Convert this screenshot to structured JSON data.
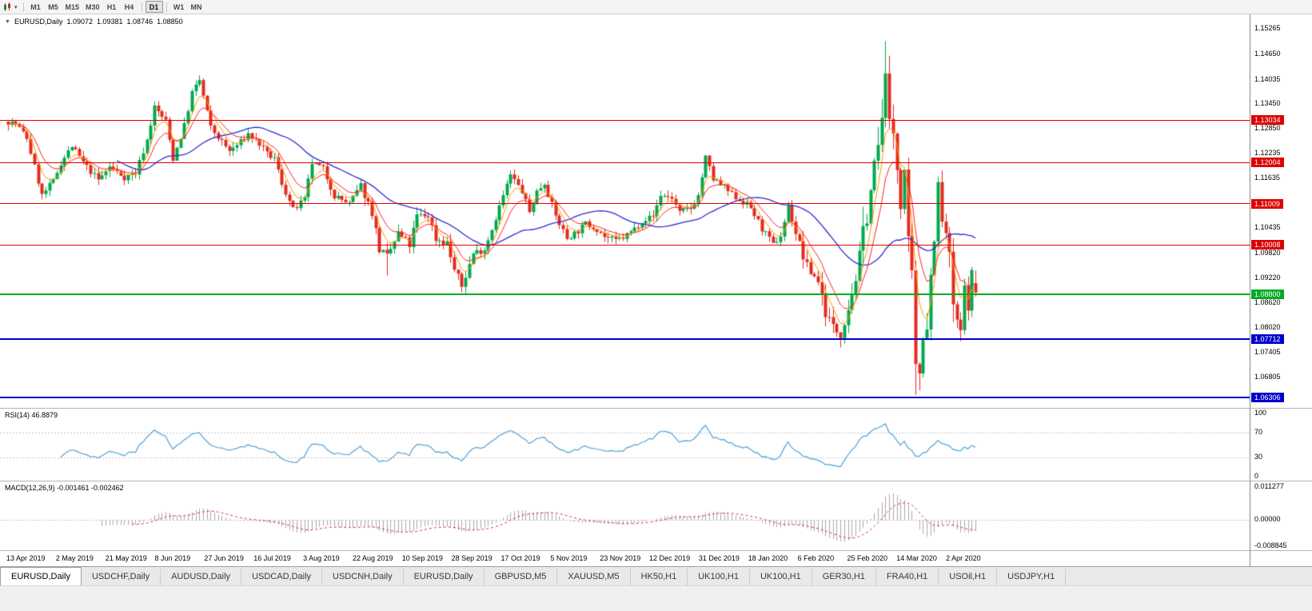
{
  "toolbar": {
    "timeframes": [
      {
        "label": "M1"
      },
      {
        "label": "M5"
      },
      {
        "label": "M15"
      },
      {
        "label": "M30"
      },
      {
        "label": "H1"
      },
      {
        "label": "H4",
        "sep_after": true
      },
      {
        "label": "D1",
        "active": true,
        "sep_after": true
      },
      {
        "label": "W1"
      },
      {
        "label": "MN"
      }
    ]
  },
  "chart": {
    "symbol": "EURUSD,Daily",
    "open": "1.09072",
    "high": "1.09381",
    "low": "1.08746",
    "close": "1.08850"
  },
  "price_axis": {
    "ticks": [
      "1.15265",
      "1.14650",
      "1.14035",
      "1.13450",
      "1.12850",
      "1.12235",
      "1.11635",
      "1.10435",
      "1.09820",
      "1.09220",
      "1.08620",
      "1.08020",
      "1.07405",
      "1.06805"
    ]
  },
  "rsi": {
    "label": "RSI(14) 46.8879",
    "ticks": [
      {
        "label": "100",
        "value": 100
      },
      {
        "label": "70",
        "value": 70
      },
      {
        "label": "30",
        "value": 30
      },
      {
        "label": "0",
        "value": 0
      }
    ],
    "level_lines": [
      70,
      30
    ]
  },
  "macd": {
    "label": "MACD(12,26,9) -0.001461 -0.002462",
    "ticks": [
      {
        "label": "0.011277",
        "value": 0.011277
      },
      {
        "label": "0.00000",
        "value": 0
      },
      {
        "label": "-0.008845",
        "value": -0.008845
      }
    ]
  },
  "date_axis": [
    "13 Apr 2019",
    "2 May 2019",
    "21 May 2019",
    "8 Jun 2019",
    "27 Jun 2019",
    "16 Jul 2019",
    "3 Aug 2019",
    "22 Aug 2019",
    "10 Sep 2019",
    "28 Sep 2019",
    "17 Oct 2019",
    "5 Nov 2019",
    "23 Nov 2019",
    "12 Dec 2019",
    "31 Dec 2019",
    "18 Jan 2020",
    "6 Feb 2020",
    "25 Feb 2020",
    "14 Mar 2020",
    "2 Apr 2020"
  ],
  "tabs": [
    {
      "label": "EURUSD,Daily",
      "active": true
    },
    {
      "label": "USDCHF,Daily"
    },
    {
      "label": "AUDUSD,Daily"
    },
    {
      "label": "USDCAD,Daily"
    },
    {
      "label": "USDCNH,Daily"
    },
    {
      "label": "EURUSD,Daily"
    },
    {
      "label": "GBPUSD,M5"
    },
    {
      "label": "XAUUSD,M5"
    },
    {
      "label": "HK50,H1"
    },
    {
      "label": "UK100,H1"
    },
    {
      "label": "UK100,H1"
    },
    {
      "label": "GER30,H1"
    },
    {
      "label": "FRA40,H1"
    },
    {
      "label": "USOil,H1"
    },
    {
      "label": "USDJPY,H1"
    }
  ],
  "colors": {
    "bull": "#00a84f",
    "bear": "#e32b1e",
    "ma_fast": "#ff9900",
    "ma_mid": "#ff2020",
    "ma_slow": "#2b2bd0",
    "rsi_line": "#4da0d8",
    "rsi_levels": "#c4c4c4",
    "macd_hist": "#a8a8a8",
    "macd_signal": "#e03030"
  },
  "chart_data": {
    "type": "candlestick",
    "symbol": "EURUSD",
    "timeframe": "Daily",
    "bars": 259,
    "y_range": [
      1.0605,
      1.156
    ],
    "last_bar": {
      "open": 1.09072,
      "high": 1.09381,
      "low": 1.08746,
      "close": 1.0885
    },
    "levels": [
      {
        "label": "1.13034",
        "price": 1.13034,
        "color": "#dd0000",
        "thickness": 1
      },
      {
        "label": "1.12004",
        "price": 1.12004,
        "color": "#dd0000",
        "thickness": 1
      },
      {
        "label": "1.11009",
        "price": 1.11009,
        "color": "#dd0000",
        "thickness": 1
      },
      {
        "label": "1.10008",
        "price": 1.10008,
        "color": "#dd0000",
        "thickness": 1
      },
      {
        "label": "1.08800",
        "price": 1.088,
        "color": "#00aa22",
        "thickness": 2
      },
      {
        "label": "1.07712",
        "price": 1.07712,
        "color": "#0000cc",
        "thickness": 2
      },
      {
        "label": "1.06306",
        "price": 1.06306,
        "color": "#0000cc",
        "thickness": 2
      }
    ],
    "indicators": {
      "rsi": {
        "period": 14,
        "current_value": "46.8879"
      },
      "macd": {
        "fast": 12,
        "slow": 26,
        "signal": 9,
        "current_values": [
          "-0.001461",
          "-0.002462"
        ]
      },
      "moving_averages": [
        {
          "type": "ema",
          "period": 5
        },
        {
          "type": "ema",
          "period": 10
        },
        {
          "type": "sma",
          "period": 30
        }
      ]
    },
    "price_path_anchors": [
      [
        0,
        1.13
      ],
      [
        2,
        1.1295
      ],
      [
        5,
        1.126
      ],
      [
        9,
        1.112
      ],
      [
        12,
        1.1155
      ],
      [
        14,
        1.12
      ],
      [
        17,
        1.124
      ],
      [
        20,
        1.12
      ],
      [
        24,
        1.1158
      ],
      [
        27,
        1.119
      ],
      [
        31,
        1.1165
      ],
      [
        34,
        1.1175
      ],
      [
        37,
        1.1255
      ],
      [
        39,
        1.1335
      ],
      [
        42,
        1.13
      ],
      [
        44,
        1.121
      ],
      [
        47,
        1.129
      ],
      [
        49,
        1.137
      ],
      [
        51,
        1.14
      ],
      [
        54,
        1.1285
      ],
      [
        57,
        1.125
      ],
      [
        59,
        1.1228
      ],
      [
        62,
        1.125
      ],
      [
        64,
        1.127
      ],
      [
        67,
        1.1245
      ],
      [
        69,
        1.122
      ],
      [
        71,
        1.121
      ],
      [
        73,
        1.115
      ],
      [
        76,
        1.1085
      ],
      [
        79,
        1.111
      ],
      [
        81,
        1.12
      ],
      [
        84,
        1.1185
      ],
      [
        87,
        1.112
      ],
      [
        91,
        1.11
      ],
      [
        94,
        1.1145
      ],
      [
        97,
        1.108
      ],
      [
        99,
        1.099
      ],
      [
        101,
        1.097
      ],
      [
        104,
        1.1028
      ],
      [
        107,
        1.1
      ],
      [
        109,
        1.107
      ],
      [
        112,
        1.1073
      ],
      [
        114,
        1.1016
      ],
      [
        117,
        1.1005
      ],
      [
        119,
        1.094
      ],
      [
        121,
        1.09
      ],
      [
        124,
        1.098
      ],
      [
        127,
        1.099
      ],
      [
        129,
        1.104
      ],
      [
        132,
        1.112
      ],
      [
        134,
        1.117
      ],
      [
        137,
        1.113
      ],
      [
        139,
        1.108
      ],
      [
        141,
        1.113
      ],
      [
        143,
        1.1152
      ],
      [
        146,
        1.107
      ],
      [
        149,
        1.1017
      ],
      [
        152,
        1.1035
      ],
      [
        154,
        1.1052
      ],
      [
        157,
        1.104
      ],
      [
        159,
        1.1021
      ],
      [
        162,
        1.101
      ],
      [
        164,
        1.1018
      ],
      [
        167,
        1.104
      ],
      [
        169,
        1.106
      ],
      [
        172,
        1.107
      ],
      [
        174,
        1.1122
      ],
      [
        177,
        1.1115
      ],
      [
        179,
        1.1078
      ],
      [
        182,
        1.109
      ],
      [
        184,
        1.112
      ],
      [
        186,
        1.1212
      ],
      [
        188,
        1.116
      ],
      [
        191,
        1.114
      ],
      [
        193,
        1.1122
      ],
      [
        196,
        1.1105
      ],
      [
        198,
        1.109
      ],
      [
        201,
        1.104
      ],
      [
        204,
        1.1
      ],
      [
        206,
        1.1023
      ],
      [
        208,
        1.1093
      ],
      [
        211,
        1.1
      ],
      [
        213,
        1.0945
      ],
      [
        216,
        1.0915
      ],
      [
        218,
        1.0838
      ],
      [
        220,
        1.08
      ],
      [
        222,
        1.0786
      ],
      [
        224,
        1.085
      ],
      [
        226,
        1.092
      ],
      [
        228,
        1.1026
      ],
      [
        230,
        1.1133
      ],
      [
        232,
        1.124
      ],
      [
        233,
        1.1288
      ],
      [
        234,
        1.1444
      ],
      [
        235,
        1.1281
      ],
      [
        236,
        1.127
      ],
      [
        238,
        1.1106
      ],
      [
        239,
        1.118
      ],
      [
        240,
        1.0995
      ],
      [
        241,
        1.0918
      ],
      [
        242,
        1.0692
      ],
      [
        243,
        1.0694
      ],
      [
        244,
        1.079
      ],
      [
        245,
        1.081
      ],
      [
        246,
        1.0926
      ],
      [
        247,
        1.103
      ],
      [
        248,
        1.114
      ],
      [
        249,
        1.1048
      ],
      [
        250,
        1.1031
      ],
      [
        251,
        1.0961
      ],
      [
        252,
        1.0858
      ],
      [
        253,
        1.0808
      ],
      [
        254,
        1.0791
      ],
      [
        255,
        1.0893
      ],
      [
        256,
        1.0856
      ],
      [
        257,
        1.093
      ],
      [
        258,
        1.0885
      ]
    ],
    "key_extremes": [
      {
        "i": 51,
        "high": 1.1412
      },
      {
        "i": 101,
        "low": 1.0926
      },
      {
        "i": 121,
        "low": 1.0885
      },
      {
        "i": 222,
        "low": 1.0778
      },
      {
        "i": 234,
        "high": 1.1495
      },
      {
        "i": 242,
        "low": 1.0636
      },
      {
        "i": 248,
        "high": 1.1148
      }
    ]
  }
}
